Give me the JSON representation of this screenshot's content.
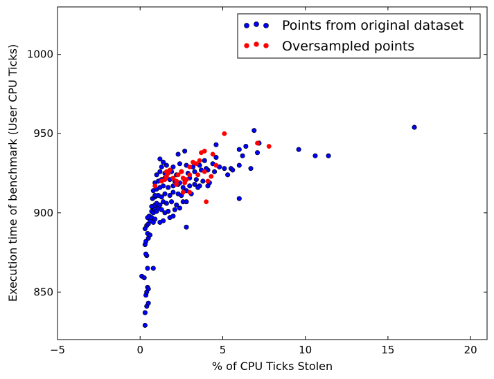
{
  "chart_data": {
    "type": "scatter",
    "title": "",
    "xlabel": "% of CPU Ticks Stolen",
    "ylabel": "Execution time of benchmark (User CPU Ticks)",
    "xlim": [
      -5,
      21
    ],
    "ylim": [
      820,
      1030
    ],
    "xticks": [
      -5,
      0,
      5,
      10,
      15,
      20
    ],
    "yticks": [
      850,
      900,
      950,
      1000
    ],
    "grid": false,
    "legend_position": "top-right",
    "series": [
      {
        "name": "Points from original dataset",
        "color": "#0000ff",
        "points": [
          [
            0.3,
            829
          ],
          [
            0.3,
            837
          ],
          [
            0.4,
            841
          ],
          [
            0.5,
            843
          ],
          [
            0.35,
            848
          ],
          [
            0.4,
            850
          ],
          [
            0.45,
            853
          ],
          [
            0.5,
            852
          ],
          [
            0.1,
            860
          ],
          [
            0.25,
            859
          ],
          [
            0.45,
            865
          ],
          [
            0.8,
            865
          ],
          [
            0.4,
            873
          ],
          [
            0.35,
            874
          ],
          [
            0.3,
            880
          ],
          [
            0.35,
            882
          ],
          [
            0.5,
            884
          ],
          [
            0.45,
            887
          ],
          [
            0.6,
            886
          ],
          [
            0.3,
            890
          ],
          [
            0.4,
            892
          ],
          [
            0.5,
            893
          ],
          [
            0.6,
            895
          ],
          [
            0.8,
            894
          ],
          [
            0.45,
            897
          ],
          [
            0.55,
            898
          ],
          [
            0.7,
            897
          ],
          [
            0.9,
            896
          ],
          [
            1.2,
            894
          ],
          [
            1.4,
            895
          ],
          [
            1.8,
            897
          ],
          [
            2.0,
            898
          ],
          [
            0.7,
            901
          ],
          [
            0.8,
            900
          ],
          [
            0.9,
            902
          ],
          [
            1.0,
            901
          ],
          [
            1.1,
            903
          ],
          [
            1.3,
            902
          ],
          [
            1.5,
            900
          ],
          [
            1.7,
            901
          ],
          [
            2.1,
            902
          ],
          [
            2.4,
            903
          ],
          [
            0.7,
            904
          ],
          [
            0.9,
            905
          ],
          [
            1.0,
            906
          ],
          [
            1.2,
            905
          ],
          [
            1.4,
            907
          ],
          [
            1.6,
            906
          ],
          [
            1.9,
            907
          ],
          [
            2.2,
            905
          ],
          [
            2.6,
            907
          ],
          [
            2.8,
            907
          ],
          [
            0.75,
            909
          ],
          [
            0.9,
            910
          ],
          [
            1.1,
            911
          ],
          [
            1.3,
            910
          ],
          [
            1.5,
            912
          ],
          [
            1.8,
            911
          ],
          [
            2.0,
            913
          ],
          [
            2.3,
            912
          ],
          [
            2.5,
            911
          ],
          [
            2.8,
            914
          ],
          [
            3.1,
            912
          ],
          [
            0.8,
            914
          ],
          [
            1.0,
            915
          ],
          [
            1.2,
            916
          ],
          [
            1.4,
            917
          ],
          [
            1.7,
            916
          ],
          [
            2.0,
            917
          ],
          [
            2.3,
            918
          ],
          [
            2.6,
            916
          ],
          [
            3.0,
            917
          ],
          [
            3.3,
            918
          ],
          [
            3.6,
            917
          ],
          [
            0.9,
            919
          ],
          [
            1.1,
            920
          ],
          [
            1.3,
            921
          ],
          [
            1.5,
            922
          ],
          [
            1.8,
            921
          ],
          [
            2.1,
            920
          ],
          [
            2.4,
            919
          ],
          [
            2.7,
            921
          ],
          [
            3.0,
            922
          ],
          [
            3.4,
            921
          ],
          [
            3.8,
            920
          ],
          [
            4.2,
            919
          ],
          [
            1.0,
            924
          ],
          [
            1.2,
            926
          ],
          [
            1.5,
            925
          ],
          [
            1.9,
            926
          ],
          [
            2.2,
            924
          ],
          [
            2.5,
            926
          ],
          [
            2.9,
            925
          ],
          [
            3.3,
            926
          ],
          [
            3.7,
            927
          ],
          [
            4.1,
            927
          ],
          [
            4.5,
            926
          ],
          [
            1.3,
            929
          ],
          [
            1.6,
            930
          ],
          [
            2.0,
            929
          ],
          [
            2.4,
            931
          ],
          [
            2.8,
            930
          ],
          [
            3.2,
            929
          ],
          [
            3.6,
            930
          ],
          [
            4.0,
            928
          ],
          [
            4.4,
            931
          ],
          [
            4.8,
            929
          ],
          [
            5.1,
            928
          ],
          [
            5.5,
            928
          ],
          [
            1.2,
            934
          ],
          [
            2.3,
            937
          ],
          [
            2.7,
            939
          ],
          [
            3.9,
            933
          ],
          [
            4.6,
            935
          ],
          [
            5.3,
            924
          ],
          [
            5.6,
            927
          ],
          [
            6.0,
            930
          ],
          [
            6.2,
            936
          ],
          [
            6.0,
            940
          ],
          [
            6.4,
            942
          ],
          [
            6.7,
            928
          ],
          [
            4.6,
            943
          ],
          [
            6.9,
            952
          ],
          [
            7.1,
            938
          ],
          [
            7.2,
            944
          ],
          [
            9.6,
            940
          ],
          [
            10.6,
            936
          ],
          [
            11.4,
            936
          ],
          [
            16.6,
            954
          ],
          [
            6.0,
            909
          ],
          [
            2.8,
            891
          ],
          [
            4.1,
            917
          ],
          [
            3.5,
            916
          ],
          [
            1.4,
            932
          ],
          [
            0.9,
            911
          ]
        ]
      },
      {
        "name": "Oversampled points",
        "color": "#ff0000",
        "points": [
          [
            0.9,
            917
          ],
          [
            1.3,
            920
          ],
          [
            1.5,
            921
          ],
          [
            1.6,
            923
          ],
          [
            1.7,
            925
          ],
          [
            1.8,
            927
          ],
          [
            2.0,
            922
          ],
          [
            2.2,
            920
          ],
          [
            2.3,
            924
          ],
          [
            2.5,
            926
          ],
          [
            2.6,
            922
          ],
          [
            2.7,
            919
          ],
          [
            2.8,
            921
          ],
          [
            3.0,
            924
          ],
          [
            3.0,
            929
          ],
          [
            3.2,
            932
          ],
          [
            3.4,
            931
          ],
          [
            3.6,
            933
          ],
          [
            3.7,
            938
          ],
          [
            3.9,
            939
          ],
          [
            3.5,
            924
          ],
          [
            3.9,
            926
          ],
          [
            4.1,
            920
          ],
          [
            4.3,
            923
          ],
          [
            4.4,
            937
          ],
          [
            4.6,
            930
          ],
          [
            5.1,
            950
          ],
          [
            4.0,
            907
          ],
          [
            7.1,
            944
          ],
          [
            7.8,
            942
          ],
          [
            2.6,
            913
          ],
          [
            3.0,
            913
          ],
          [
            2.2,
            918
          ],
          [
            1.6,
            926
          ]
        ]
      }
    ]
  }
}
